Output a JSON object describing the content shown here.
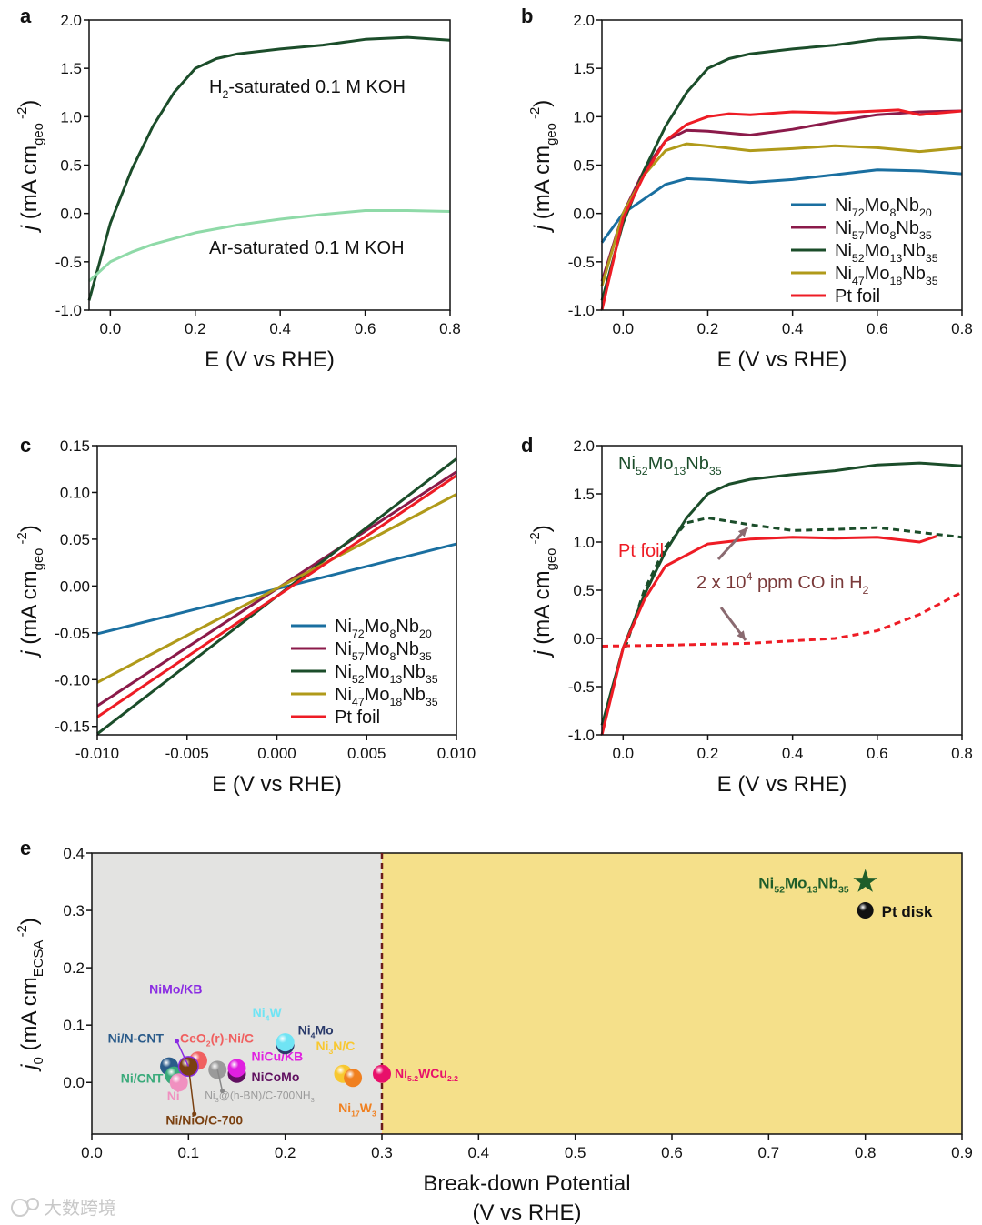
{
  "panel_letters": [
    "a",
    "b",
    "c",
    "d",
    "e"
  ],
  "watermark": "大数跨境",
  "chart_data": [
    {
      "id": "a",
      "type": "line",
      "xlabel": "E (V vs RHE)",
      "ylabel": [
        {
          "t": "j",
          "s": "i"
        },
        {
          "t": " (mA cm"
        },
        {
          "t": "geo",
          "s": "sub"
        },
        {
          "t": " -2",
          "s": "sup"
        },
        {
          "t": ")"
        }
      ],
      "xlim": [
        -0.05,
        0.8
      ],
      "ylim": [
        -1.0,
        2.0
      ],
      "xticks": [
        0.0,
        0.2,
        0.4,
        0.6,
        0.8
      ],
      "xtick_labels": [
        "0.0",
        "0.2",
        "0.4",
        "0.6",
        "0.8"
      ],
      "yticks": [
        -1.0,
        -0.5,
        0.0,
        0.5,
        1.0,
        1.5,
        2.0
      ],
      "ytick_labels": [
        "-1.0",
        "-0.5",
        "0.0",
        "0.5",
        "1.0",
        "1.5",
        "2.0"
      ],
      "series": [
        {
          "name": "H2-saturated 0.1 M KOH",
          "label": [
            "H",
            "2",
            "-saturated 0.1 M KOH"
          ],
          "color": "#1b4d2a",
          "dash": false,
          "x": [
            -0.05,
            0,
            0.05,
            0.1,
            0.15,
            0.2,
            0.25,
            0.3,
            0.4,
            0.5,
            0.6,
            0.7,
            0.8
          ],
          "y": [
            -0.9,
            -0.1,
            0.45,
            0.9,
            1.25,
            1.5,
            1.6,
            1.65,
            1.7,
            1.74,
            1.8,
            1.82,
            1.79
          ]
        },
        {
          "name": "Ar-saturated 0.1 M KOH",
          "label": [
            "Ar-saturated 0.1 M KOH"
          ],
          "color": "#8fdaa8",
          "dash": false,
          "x": [
            -0.05,
            0,
            0.05,
            0.1,
            0.2,
            0.3,
            0.4,
            0.5,
            0.6,
            0.7,
            0.8
          ],
          "y": [
            -0.7,
            -0.5,
            -0.4,
            -0.32,
            -0.2,
            -0.12,
            -0.06,
            -0.01,
            0.03,
            0.03,
            0.02
          ]
        }
      ]
    },
    {
      "id": "b",
      "type": "line",
      "xlabel": "E (V vs RHE)",
      "ylabel": [
        {
          "t": "j",
          "s": "i"
        },
        {
          "t": " (mA cm"
        },
        {
          "t": "geo",
          "s": "sub"
        },
        {
          "t": " -2",
          "s": "sup"
        },
        {
          "t": ")"
        }
      ],
      "xlim": [
        -0.05,
        0.8
      ],
      "ylim": [
        -1.0,
        2.0
      ],
      "xticks": [
        0.0,
        0.2,
        0.4,
        0.6,
        0.8
      ],
      "xtick_labels": [
        "0.0",
        "0.2",
        "0.4",
        "0.6",
        "0.8"
      ],
      "yticks": [
        -1.0,
        -0.5,
        0.0,
        0.5,
        1.0,
        1.5,
        2.0
      ],
      "ytick_labels": [
        "-1.0",
        "-0.5",
        "0.0",
        "0.5",
        "1.0",
        "1.5",
        "2.0"
      ],
      "legend": "bottom-right",
      "series": [
        {
          "name": "Ni72Mo8Nb20",
          "label": [
            "Ni",
            "72",
            "Mo",
            "8",
            "Nb",
            "20"
          ],
          "color": "#1a6fa0",
          "x": [
            -0.05,
            0,
            0.05,
            0.1,
            0.15,
            0.2,
            0.3,
            0.4,
            0.5,
            0.6,
            0.7,
            0.8
          ],
          "y": [
            -0.3,
            0,
            0.15,
            0.3,
            0.36,
            0.35,
            0.32,
            0.35,
            0.4,
            0.45,
            0.44,
            0.41
          ]
        },
        {
          "name": "Ni57Mo8Nb35",
          "label": [
            "Ni",
            "57",
            "Mo",
            "8",
            "Nb",
            "35"
          ],
          "color": "#8b1a4a",
          "x": [
            -0.05,
            0,
            0.05,
            0.1,
            0.15,
            0.2,
            0.3,
            0.4,
            0.5,
            0.6,
            0.7,
            0.8
          ],
          "y": [
            -0.7,
            0,
            0.45,
            0.75,
            0.86,
            0.85,
            0.81,
            0.87,
            0.95,
            1.02,
            1.05,
            1.06
          ]
        },
        {
          "name": "Ni52Mo13Nb35",
          "label": [
            "Ni",
            "52",
            "Mo",
            "13",
            "Nb",
            "35"
          ],
          "color": "#1b4d2a",
          "x": [
            -0.05,
            0,
            0.05,
            0.1,
            0.15,
            0.2,
            0.25,
            0.3,
            0.4,
            0.5,
            0.6,
            0.7,
            0.8
          ],
          "y": [
            -0.9,
            -0.1,
            0.45,
            0.9,
            1.25,
            1.5,
            1.6,
            1.65,
            1.7,
            1.74,
            1.8,
            1.82,
            1.79
          ]
        },
        {
          "name": "Ni47Mo18Nb35",
          "label": [
            "Ni",
            "47",
            "Mo",
            "18",
            "Nb",
            "35"
          ],
          "color": "#b09a1a",
          "x": [
            -0.05,
            0,
            0.05,
            0.1,
            0.15,
            0.2,
            0.3,
            0.4,
            0.5,
            0.6,
            0.7,
            0.8
          ],
          "y": [
            -0.75,
            0,
            0.4,
            0.65,
            0.72,
            0.7,
            0.65,
            0.67,
            0.7,
            0.68,
            0.64,
            0.68
          ]
        },
        {
          "name": "Pt foil",
          "label": [
            "Pt foil"
          ],
          "color": "#ee1c25",
          "x": [
            -0.05,
            0,
            0.05,
            0.1,
            0.15,
            0.2,
            0.25,
            0.3,
            0.4,
            0.5,
            0.6,
            0.65,
            0.7,
            0.8
          ],
          "y": [
            -1.0,
            -0.05,
            0.4,
            0.75,
            0.92,
            1.0,
            1.03,
            1.02,
            1.05,
            1.04,
            1.06,
            1.07,
            1.02,
            1.06
          ]
        }
      ]
    },
    {
      "id": "c",
      "type": "line",
      "xlabel": "E (V vs RHE)",
      "ylabel": [
        {
          "t": "j",
          "s": "i"
        },
        {
          "t": " (mA cm"
        },
        {
          "t": "geo",
          "s": "sub"
        },
        {
          "t": " -2",
          "s": "sup"
        },
        {
          "t": ")"
        }
      ],
      "xlim": [
        -0.01,
        0.01
      ],
      "ylim": [
        -0.159,
        0.15
      ],
      "xticks": [
        -0.01,
        -0.005,
        0,
        0.005,
        0.01
      ],
      "xtick_labels": [
        "-0.010",
        "-0.005",
        "0.000",
        "0.005",
        "0.010"
      ],
      "yticks": [
        -0.15,
        -0.1,
        -0.05,
        0,
        0.05,
        0.1,
        0.15
      ],
      "ytick_labels": [
        "-0.15",
        "-0.10",
        "-0.05",
        "0.00",
        "0.05",
        "0.10",
        "0.15"
      ],
      "legend": "bottom-right",
      "series": [
        {
          "name": "Ni72Mo8Nb20",
          "label": [
            "Ni",
            "72",
            "Mo",
            "8",
            "Nb",
            "20"
          ],
          "color": "#1a6fa0",
          "x": [
            -0.01,
            0.01
          ],
          "y": [
            -0.051,
            0.045
          ]
        },
        {
          "name": "Ni57Mo8Nb35",
          "label": [
            "Ni",
            "57",
            "Mo",
            "8",
            "Nb",
            "35"
          ],
          "color": "#8b1a4a",
          "x": [
            -0.01,
            0.01
          ],
          "y": [
            -0.128,
            0.122
          ]
        },
        {
          "name": "Ni52Mo13Nb35",
          "label": [
            "Ni",
            "52",
            "Mo",
            "13",
            "Nb",
            "35"
          ],
          "color": "#1b4d2a",
          "x": [
            -0.01,
            0.01
          ],
          "y": [
            -0.158,
            0.136
          ]
        },
        {
          "name": "Ni47Mo18Nb35",
          "label": [
            "Ni",
            "47",
            "Mo",
            "18",
            "Nb",
            "35"
          ],
          "color": "#b09a1a",
          "x": [
            -0.01,
            0.01
          ],
          "y": [
            -0.103,
            0.098
          ]
        },
        {
          "name": "Pt foil",
          "label": [
            "Pt foil"
          ],
          "color": "#ee1c25",
          "x": [
            -0.01,
            0.01
          ],
          "y": [
            -0.14,
            0.118
          ]
        }
      ]
    },
    {
      "id": "d",
      "type": "line",
      "xlabel": "E (V vs RHE)",
      "ylabel": [
        {
          "t": "j",
          "s": "i"
        },
        {
          "t": " (mA cm"
        },
        {
          "t": "geo",
          "s": "sub"
        },
        {
          "t": " -2",
          "s": "sup"
        },
        {
          "t": ")"
        }
      ],
      "xlim": [
        -0.05,
        0.8
      ],
      "ylim": [
        -1.0,
        2.0
      ],
      "xticks": [
        0.0,
        0.2,
        0.4,
        0.6,
        0.8
      ],
      "xtick_labels": [
        "0.0",
        "0.2",
        "0.4",
        "0.6",
        "0.8"
      ],
      "yticks": [
        -1.0,
        -0.5,
        0.0,
        0.5,
        1.0,
        1.5,
        2.0
      ],
      "ytick_labels": [
        "-1.0",
        "-0.5",
        "0.0",
        "0.5",
        "1.0",
        "1.5",
        "2.0"
      ],
      "annotations": {
        "ni_label": [
          "Ni",
          "52",
          "Mo",
          "13",
          "Nb",
          "35"
        ],
        "pt_label": [
          "Pt foil"
        ],
        "co_label": [
          {
            "t": "2 x 10"
          },
          {
            "t": "4",
            "s": "sup"
          },
          {
            "t": " ppm CO in H"
          },
          {
            "t": "2",
            "s": "sub"
          }
        ]
      },
      "series": [
        {
          "name": "Ni52Mo13Nb35 H2",
          "color": "#1b4d2a",
          "dash": false,
          "x": [
            -0.05,
            0,
            0.05,
            0.1,
            0.15,
            0.2,
            0.25,
            0.3,
            0.4,
            0.5,
            0.6,
            0.7,
            0.8
          ],
          "y": [
            -0.9,
            -0.1,
            0.45,
            0.9,
            1.25,
            1.5,
            1.6,
            1.65,
            1.7,
            1.74,
            1.8,
            1.82,
            1.79
          ]
        },
        {
          "name": "Ni52Mo13Nb35 CO",
          "color": "#1b4d2a",
          "dash": true,
          "x": [
            0.005,
            0.05,
            0.1,
            0.15,
            0.2,
            0.3,
            0.4,
            0.5,
            0.6,
            0.7,
            0.8
          ],
          "y": [
            -0.1,
            0.5,
            0.95,
            1.2,
            1.25,
            1.18,
            1.12,
            1.13,
            1.15,
            1.1,
            1.05
          ]
        },
        {
          "name": "Pt foil H2",
          "color": "#ee1c25",
          "dash": false,
          "x": [
            -0.05,
            0,
            0.05,
            0.1,
            0.2,
            0.3,
            0.4,
            0.5,
            0.6,
            0.7,
            0.74
          ],
          "y": [
            -1.0,
            -0.1,
            0.4,
            0.75,
            0.98,
            1.03,
            1.05,
            1.04,
            1.05,
            1.0,
            1.06
          ]
        },
        {
          "name": "Pt foil CO",
          "color": "#ee1c25",
          "dash": true,
          "x": [
            -0.05,
            0.1,
            0.3,
            0.5,
            0.6,
            0.7,
            0.8
          ],
          "y": [
            -0.08,
            -0.07,
            -0.05,
            0.0,
            0.08,
            0.25,
            0.48
          ]
        }
      ]
    },
    {
      "id": "e",
      "type": "scatter",
      "xlabel": "Break-down Potential",
      "xlabel2": "(V vs RHE)",
      "ylabel": [
        {
          "t": "j",
          "s": "i"
        },
        {
          "t": "0",
          "s": "sub"
        },
        {
          "t": " (mA cm"
        },
        {
          "t": "ECSA",
          "s": "sub"
        },
        {
          "t": " -2",
          "s": "sup"
        },
        {
          "t": ")"
        }
      ],
      "xlim": [
        0,
        0.9
      ],
      "ylim": [
        -0.09,
        0.4
      ],
      "xticks": [
        0,
        0.1,
        0.2,
        0.3,
        0.4,
        0.5,
        0.6,
        0.7,
        0.8,
        0.9
      ],
      "xtick_labels": [
        "0.0",
        "0.1",
        "0.2",
        "0.3",
        "0.4",
        "0.5",
        "0.6",
        "0.7",
        "0.8",
        "0.9"
      ],
      "yticks": [
        0,
        0.1,
        0.2,
        0.3,
        0.4
      ],
      "ytick_labels": [
        "0.0",
        "0.1",
        "0.2",
        "0.3",
        "0.4"
      ],
      "threshold_x": 0.3,
      "colors": {
        "left_bg": "#e3e3e1",
        "right_bg": "#f5e08a",
        "threshold": "#6b1a1a"
      },
      "points": [
        {
          "name": "Ni/N-CNT",
          "label": [
            "Ni/N-CNT"
          ],
          "x": 0.08,
          "y": 0.028,
          "color": "#2a5b8a"
        },
        {
          "name": "Ni/CNT",
          "label": [
            "Ni/CNT"
          ],
          "x": 0.085,
          "y": 0.012,
          "color": "#3aaa7a"
        },
        {
          "name": "Ni",
          "label": [
            "Ni"
          ],
          "x": 0.09,
          "y": 0.0,
          "color": "#f090c0"
        },
        {
          "name": "CeO2(r)-Ni/C",
          "label": [
            "CeO",
            "2",
            "(r)-Ni/C"
          ],
          "x": 0.11,
          "y": 0.038,
          "color": "#f06060"
        },
        {
          "name": "NiMo/KB",
          "label": [
            "NiMo/KB"
          ],
          "x": 0.1,
          "y": 0.028,
          "color": "#8a2be2"
        },
        {
          "name": "Ni/NiO/C-700",
          "label": [
            "Ni/NiO/C-700"
          ],
          "x": 0.1,
          "y": 0.028,
          "color": "#7a4010"
        },
        {
          "name": "Ni3@(h-BN)/C-700NH3",
          "label": [
            "Ni",
            "3",
            "@(h-BN)/C-700NH",
            "3"
          ],
          "x": 0.13,
          "y": 0.022,
          "color": "#9a9a9a"
        },
        {
          "name": "NiCoMo",
          "label": [
            "NiCoMo"
          ],
          "x": 0.15,
          "y": 0.015,
          "color": "#601060"
        },
        {
          "name": "NiCu/KB",
          "label": [
            "NiCu/KB"
          ],
          "x": 0.15,
          "y": 0.025,
          "color": "#e020e0"
        },
        {
          "name": "Ni4Mo",
          "label": [
            "Ni",
            "4",
            "Mo"
          ],
          "x": 0.2,
          "y": 0.065,
          "color": "#2a3a6a"
        },
        {
          "name": "Ni4W",
          "label": [
            "Ni",
            "4",
            "W"
          ],
          "x": 0.2,
          "y": 0.07,
          "color": "#70e4f4"
        },
        {
          "name": "Ni3N/C",
          "label": [
            "Ni",
            "3",
            "N/C"
          ],
          "x": 0.26,
          "y": 0.015,
          "color": "#f8c830"
        },
        {
          "name": "Ni17W3",
          "label": [
            "Ni",
            "17",
            "W",
            "3"
          ],
          "x": 0.27,
          "y": 0.008,
          "color": "#f08020"
        },
        {
          "name": "Ni5.2WCu2.2",
          "label": [
            "Ni",
            "5.2",
            "WCu",
            "2.2"
          ],
          "x": 0.3,
          "y": 0.015,
          "color": "#e8106a"
        },
        {
          "name": "Pt disk",
          "label": [
            "Pt disk"
          ],
          "x": 0.8,
          "y": 0.3,
          "color": "#111111"
        },
        {
          "name": "Ni52Mo13Nb35",
          "label": [
            "Ni",
            "52",
            "Mo",
            "13",
            "Nb",
            "35"
          ],
          "x": 0.8,
          "y": 0.35,
          "color": "#1f5e2a",
          "marker": "star"
        }
      ]
    }
  ]
}
